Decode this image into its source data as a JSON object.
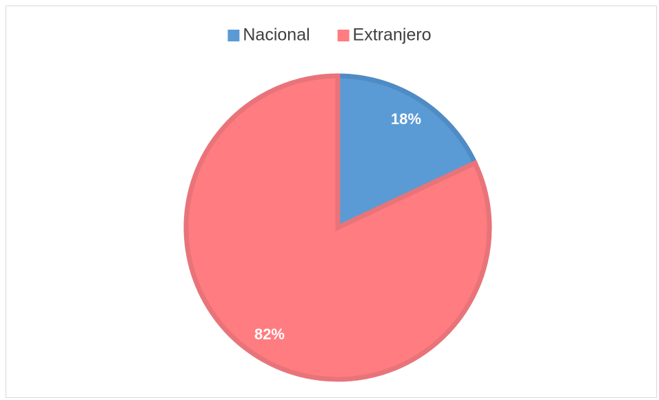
{
  "chart_data": {
    "type": "pie",
    "categories": [
      "Nacional",
      "Extranjero"
    ],
    "values": [
      18,
      82
    ],
    "value_labels": [
      "18%",
      "82%"
    ],
    "colors": [
      "#5b9bd5",
      "#ff7c80"
    ],
    "border_colors": [
      "#4f8bc4",
      "#e8747a"
    ],
    "legend": "top"
  }
}
